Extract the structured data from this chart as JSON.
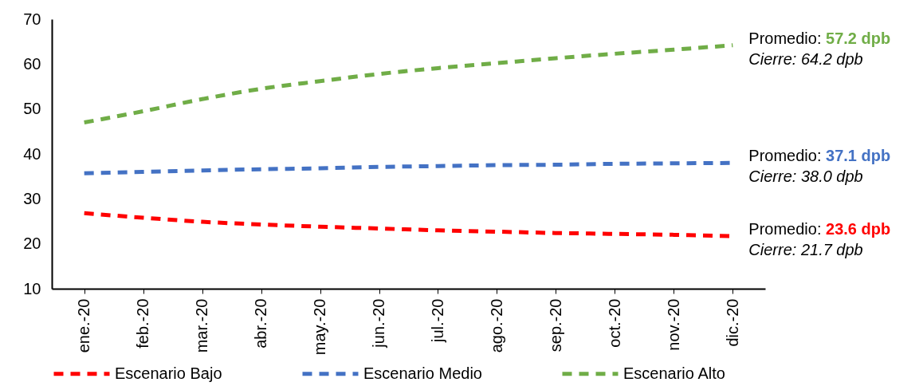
{
  "chart_data": {
    "type": "line",
    "categories": [
      "ene.-20",
      "feb.-20",
      "mar.-20",
      "abr.-20",
      "may.-20",
      "jun.-20",
      "jul.-20",
      "ago.-20",
      "sep.-20",
      "oct.-20",
      "nov.-20",
      "dic.-20"
    ],
    "series": [
      {
        "name": "Escenario Bajo",
        "color": "#ff0000",
        "values": [
          26.8,
          25.8,
          24.9,
          24.3,
          23.8,
          23.4,
          23.0,
          22.7,
          22.4,
          22.2,
          22.0,
          21.7
        ]
      },
      {
        "name": "Escenario Medio",
        "color": "#4472c4",
        "values": [
          35.7,
          36.0,
          36.3,
          36.6,
          36.8,
          37.1,
          37.3,
          37.5,
          37.6,
          37.8,
          37.9,
          38.0
        ]
      },
      {
        "name": "Escenario Alto",
        "color": "#70ad47",
        "values": [
          47.0,
          49.5,
          52.2,
          54.5,
          56.2,
          57.8,
          59.1,
          60.2,
          61.3,
          62.3,
          63.2,
          64.2
        ]
      }
    ],
    "ylim": [
      10,
      70
    ],
    "yticks": [
      10,
      20,
      30,
      40,
      50,
      60,
      70
    ],
    "line_style": "dashed",
    "legend": "bottom",
    "annotations": [
      {
        "text": "Promedio: 57.2 dpb",
        "x": "dic.-20",
        "y": 64.2
      },
      {
        "text": "Cierre: 64.2 dpb",
        "x": "dic.-20",
        "y": 64.2
      },
      {
        "text": "Promedio: 37.1 dpb",
        "x": "dic.-20",
        "y": 38.0
      },
      {
        "text": "Cierre: 38.0 dpb",
        "x": "dic.-20",
        "y": 38.0
      },
      {
        "text": "Promedio: 23.6 dpb",
        "x": "dic.-20",
        "y": 21.7
      },
      {
        "text": "Cierre: 21.7 dpb",
        "x": "dic.-20",
        "y": 21.7
      }
    ]
  }
}
